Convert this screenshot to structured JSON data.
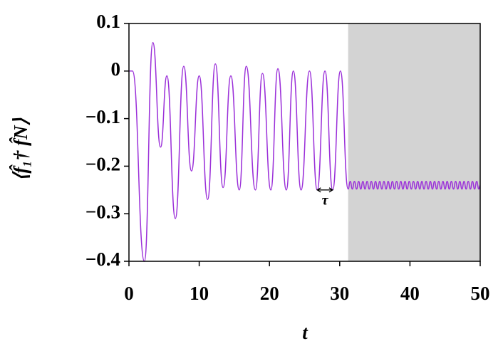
{
  "chart_data": {
    "type": "line",
    "xlabel": "t",
    "ylabel": "⟨f̂₁† f̂N⟩",
    "xlim": [
      0,
      50
    ],
    "xticks": [
      0,
      10,
      20,
      30,
      40,
      50
    ],
    "ylim": [
      -0.4,
      0.1
    ],
    "yticks": [
      0.1,
      0,
      {
        "value": -0.1,
        "label": "−0.1"
      },
      {
        "value": -0.2,
        "label": "−0.2"
      },
      {
        "value": -0.3,
        "label": "−0.3"
      },
      {
        "value": -0.4,
        "label": "−0.4"
      }
    ],
    "shaded_region": [
      31.2,
      50
    ],
    "shade_color": "#d3d3d3",
    "annotation": {
      "text": "τ",
      "x": [
        26.8,
        29.0
      ],
      "y": -0.25
    },
    "series": [
      {
        "color": "#9b30d9",
        "x": [
          0,
          0.5,
          2.2,
          3.4,
          4.5,
          5.4,
          6.6,
          7.8,
          8.9,
          10.0,
          11.2,
          12.3,
          13.4,
          14.5,
          15.7,
          16.7,
          18.0,
          19.0,
          20.2,
          21.2,
          22.4,
          23.4,
          24.5,
          25.7,
          26.8,
          27.9,
          29.0,
          30.1,
          31.2,
          31.5,
          31.8,
          32.1,
          32.4,
          32.7,
          33,
          33.3,
          33.6,
          33.9,
          34.2,
          34.5,
          34.8,
          35.1,
          35.4,
          35.7,
          36,
          36.3,
          36.6,
          36.9,
          37.2,
          37.5,
          37.8,
          38.1,
          38.4,
          38.7,
          39,
          39.3,
          39.6,
          39.9,
          40.2,
          40.5,
          40.8,
          41.1,
          41.4,
          41.7,
          42,
          42.3,
          42.6,
          42.9,
          43.2,
          43.5,
          43.8,
          44.1,
          44.4,
          44.7,
          45,
          45.3,
          45.6,
          45.9,
          46.2,
          46.5,
          46.8,
          47.1,
          47.4,
          47.7,
          48,
          48.3,
          48.6,
          48.9,
          49.2,
          49.5,
          49.8,
          50
        ],
        "values": [
          0,
          0,
          -0.4,
          0.06,
          -0.16,
          -0.01,
          -0.31,
          0.01,
          -0.21,
          -0.01,
          -0.27,
          0.015,
          -0.245,
          -0.01,
          -0.25,
          0.01,
          -0.25,
          -0.005,
          -0.25,
          0.005,
          -0.25,
          0,
          -0.25,
          0,
          -0.25,
          0,
          -0.25,
          0,
          -0.248,
          -0.232,
          -0.248,
          -0.232,
          -0.248,
          -0.232,
          -0.248,
          -0.232,
          -0.248,
          -0.232,
          -0.248,
          -0.232,
          -0.248,
          -0.232,
          -0.248,
          -0.232,
          -0.248,
          -0.232,
          -0.248,
          -0.232,
          -0.248,
          -0.232,
          -0.248,
          -0.232,
          -0.248,
          -0.232,
          -0.248,
          -0.232,
          -0.248,
          -0.232,
          -0.248,
          -0.232,
          -0.248,
          -0.232,
          -0.248,
          -0.232,
          -0.248,
          -0.232,
          -0.248,
          -0.232,
          -0.248,
          -0.232,
          -0.248,
          -0.232,
          -0.248,
          -0.232,
          -0.248,
          -0.232,
          -0.248,
          -0.232,
          -0.248,
          -0.232,
          -0.248,
          -0.232,
          -0.248,
          -0.232,
          -0.248,
          -0.232,
          -0.248,
          -0.232,
          -0.248,
          -0.232,
          -0.248,
          -0.24
        ]
      }
    ]
  }
}
